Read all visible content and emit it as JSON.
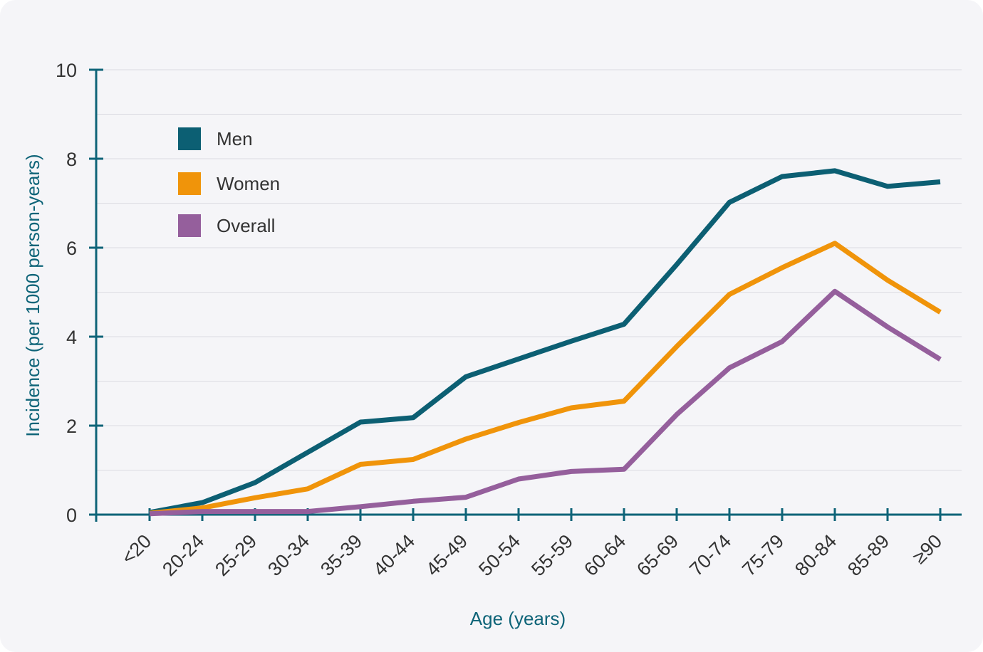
{
  "chart_data": {
    "type": "line",
    "title": "",
    "xlabel": "Age (years)",
    "ylabel": "Incidence (per 1000 person-years)",
    "ylim": [
      0,
      10
    ],
    "yticks": [
      "0",
      "2",
      "4",
      "6",
      "8",
      "10"
    ],
    "ytick_values": [
      0,
      2,
      4,
      6,
      8,
      10
    ],
    "grid": true,
    "legend_position": "top-left",
    "categories": [
      "<20",
      "20-24",
      "25-29",
      "30-34",
      "35-39",
      "40-44",
      "45-49",
      "50-54",
      "55-59",
      "60-64",
      "65-69",
      "70-74",
      "75-79",
      "80-84",
      "85-89",
      "≥90"
    ],
    "series": [
      {
        "name": "Men",
        "color": "#0c5f73",
        "values": [
          0.05,
          0.27,
          0.72,
          1.4,
          2.08,
          2.18,
          3.1,
          3.5,
          3.9,
          4.28,
          5.62,
          7.02,
          7.6,
          7.73,
          7.38,
          7.48
        ]
      },
      {
        "name": "Women",
        "color": "#f0940a",
        "values": [
          0.03,
          0.15,
          0.38,
          0.58,
          1.13,
          1.24,
          1.7,
          2.07,
          2.4,
          2.55,
          3.78,
          4.95,
          5.55,
          6.1,
          5.27,
          4.55
        ]
      },
      {
        "name": "Overall",
        "color": "#955f9c",
        "values": [
          0.02,
          0.07,
          0.07,
          0.07,
          0.18,
          0.3,
          0.39,
          0.8,
          0.97,
          1.02,
          2.25,
          3.3,
          3.89,
          5.02,
          4.22,
          3.49
        ]
      }
    ]
  }
}
